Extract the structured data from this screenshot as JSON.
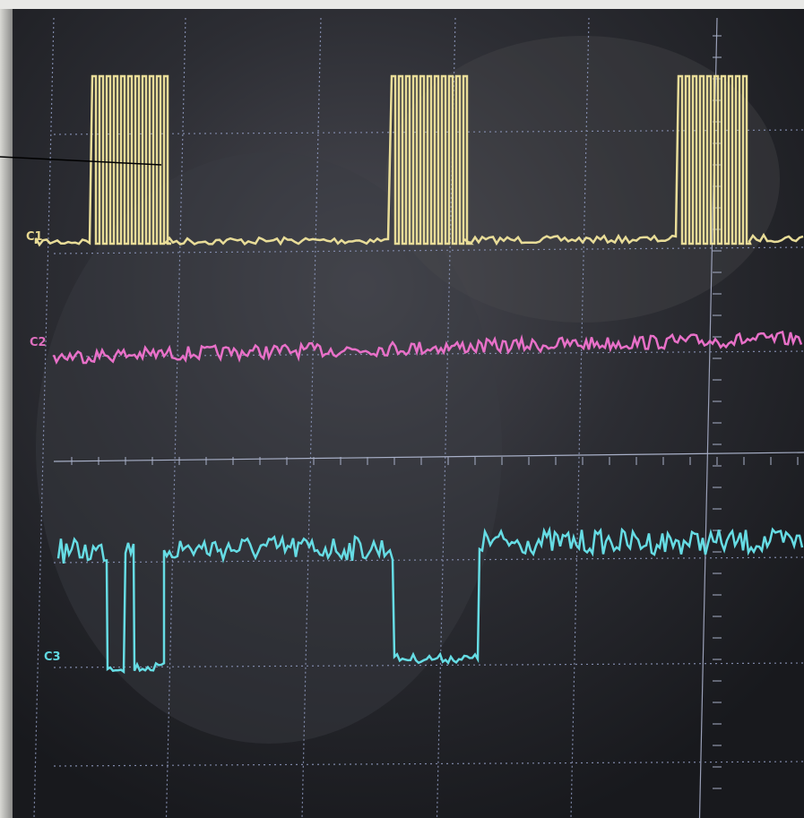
{
  "channels": [
    {
      "label": "C1"
    },
    {
      "label": "C2"
    },
    {
      "label": "C3"
    }
  ]
}
